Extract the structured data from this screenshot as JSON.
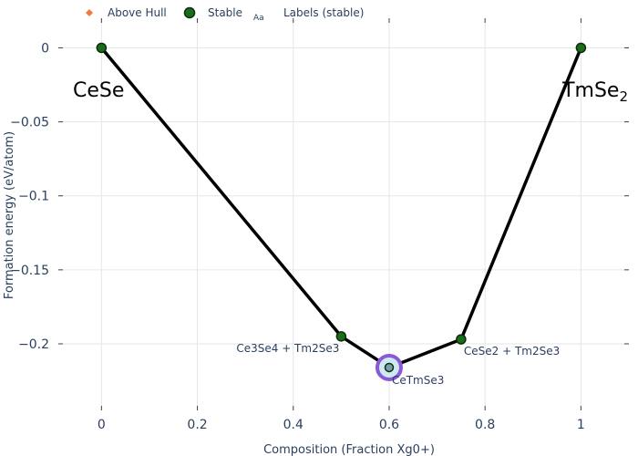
{
  "chart_data": {
    "type": "scatter",
    "xlabel": "Composition (Fraction Xg0+)",
    "ylabel": "Formation energy (eV/atom)",
    "xlim": [
      -0.09,
      1.1
    ],
    "ylim": [
      -0.245,
      0.02
    ],
    "x_ticks": [
      0,
      0.2,
      0.4,
      0.6,
      0.8,
      1
    ],
    "x_tick_labels": [
      "0",
      "0.2",
      "0.4",
      "0.6",
      "0.8",
      "1"
    ],
    "y_ticks": [
      0,
      -0.05,
      -0.1,
      -0.15,
      -0.2
    ],
    "y_tick_labels": [
      "0",
      "−0.05",
      "−0.1",
      "−0.15",
      "−0.2"
    ],
    "grid": true,
    "legend": {
      "placement": "top-left",
      "entries": [
        {
          "label": "Above Hull",
          "marker": "diamond",
          "color": "#ef7c45"
        },
        {
          "label": "Stable",
          "marker": "circle",
          "color": "#1a6e1a"
        },
        {
          "label": "Labels (stable)",
          "marker": "text",
          "symbol": "Aa"
        }
      ]
    },
    "hull_line": {
      "color": "#000000",
      "x": [
        0,
        0.5,
        0.6,
        0.75,
        1
      ],
      "y": [
        0,
        -0.195,
        -0.216,
        -0.197,
        0
      ]
    },
    "series": [
      {
        "name": "Stable",
        "color": "#1a6e1a",
        "points": [
          {
            "x": 0,
            "y": 0,
            "label": ""
          },
          {
            "x": 0.5,
            "y": -0.195,
            "label": "Ce3Se4 + Tm2Se3"
          },
          {
            "x": 0.6,
            "y": -0.216,
            "label": "CeTmSe3"
          },
          {
            "x": 0.75,
            "y": -0.197,
            "label": "CeSe2 + Tm2Se3"
          },
          {
            "x": 1,
            "y": 0,
            "label": ""
          }
        ]
      }
    ],
    "highlight": {
      "x": 0.6,
      "y": -0.216,
      "ring_color": "#8a5ad6",
      "fill_color": "#cfe9f4"
    },
    "end_labels": [
      {
        "text": "CeSe",
        "subscript": ""
      },
      {
        "text": "TmSe",
        "subscript": "2"
      }
    ]
  }
}
